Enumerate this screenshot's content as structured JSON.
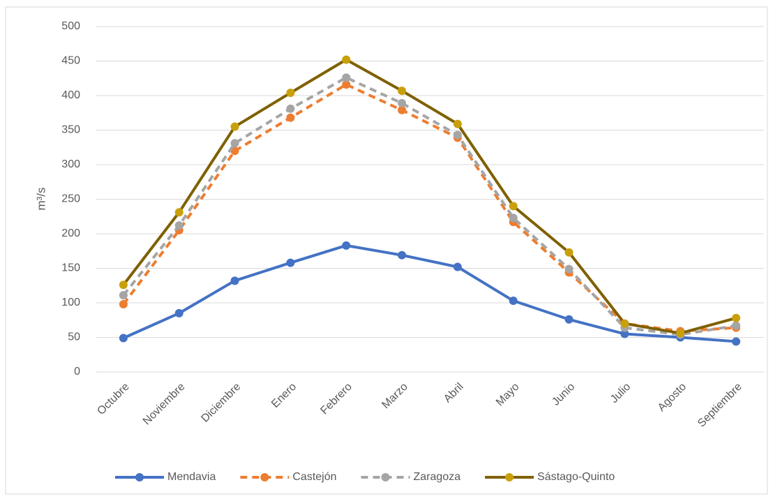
{
  "chart_data": {
    "type": "line",
    "y_label": "m³/s",
    "categories": [
      "Octubre",
      "Noviembre",
      "Diciembre",
      "Enero",
      "Febrero",
      "Marzo",
      "Abril",
      "Mayo",
      "Junio",
      "Julio",
      "Agosto",
      "Septiembre"
    ],
    "series": [
      {
        "name": "Mendavia",
        "color": "#4472c4",
        "dash": false,
        "values": [
          49,
          85,
          132,
          158,
          183,
          169,
          152,
          103,
          76,
          55,
          50,
          44
        ]
      },
      {
        "name": "Castejón",
        "color": "#ed7d31",
        "dash": true,
        "values": [
          98,
          205,
          320,
          368,
          416,
          379,
          339,
          217,
          144,
          70,
          59,
          64
        ]
      },
      {
        "name": "Zaragoza",
        "color": "#a5a5a5",
        "dash": true,
        "values": [
          111,
          212,
          331,
          381,
          426,
          389,
          343,
          223,
          149,
          64,
          54,
          67
        ]
      },
      {
        "name": "Sástago-Quinto",
        "color": "#7f6000",
        "marker_color": "#c9a00c",
        "dash": false,
        "values": [
          126,
          231,
          355,
          404,
          452,
          407,
          359,
          240,
          173,
          70,
          56,
          78
        ]
      }
    ],
    "ylim": [
      0,
      500
    ],
    "yticks": [
      0,
      50,
      100,
      150,
      200,
      250,
      300,
      350,
      400,
      450,
      500
    ],
    "grid": true,
    "legend": "bottom"
  }
}
